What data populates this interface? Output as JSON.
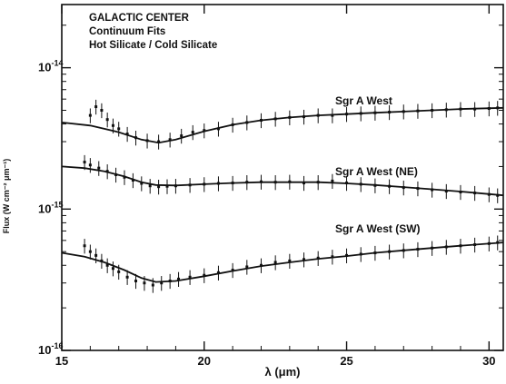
{
  "chart_data": {
    "type": "line",
    "title": "GALACTIC CENTER",
    "subtitle_lines": [
      "Continuum Fits",
      "Hot Silicate / Cold Silicate"
    ],
    "xlabel": "λ (μm)",
    "ylabel": "Flux (W cm⁻² μm⁻¹)",
    "xlim": [
      15,
      30.5
    ],
    "ylim": [
      1e-16,
      2.8e-14
    ],
    "yscale": "log",
    "x_ticks": [
      15,
      20,
      25,
      30
    ],
    "x_tick_labels": [
      "15",
      "20",
      "25",
      "30"
    ],
    "y_tick_mantissa": "10",
    "y_ticks": [
      {
        "value": 1e-16,
        "exponent": "-16"
      },
      {
        "value": 1e-15,
        "exponent": "-15"
      },
      {
        "value": 1e-14,
        "exponent": "-14"
      }
    ],
    "grid": false,
    "series": [
      {
        "name": "Sgr A West",
        "fit": {
          "x": [
            15,
            16,
            17,
            17.8,
            18.4,
            19,
            20,
            21,
            22,
            23,
            24,
            25,
            26,
            27,
            28,
            29,
            30.5
          ],
          "y": [
            4.1e-15,
            3.9e-15,
            3.5e-15,
            3.1e-15,
            2.95e-15,
            3.1e-15,
            3.55e-15,
            3.95e-15,
            4.25e-15,
            4.45e-15,
            4.6e-15,
            4.7e-15,
            4.8e-15,
            4.9e-15,
            5e-15,
            5.1e-15,
            5.2e-15
          ]
        },
        "points": {
          "x": [
            16.0,
            16.2,
            16.4,
            16.6,
            16.8,
            17.0,
            17.3,
            17.6,
            18.0,
            18.4,
            18.8,
            19.2,
            19.6,
            20.0,
            20.5,
            21.0,
            21.5,
            22.0,
            22.5,
            23.0,
            23.5,
            24.0,
            24.5,
            25.0,
            25.5,
            26.0,
            26.5,
            27.0,
            27.5,
            28.0,
            28.5,
            29.0,
            29.5,
            30.0,
            30.3
          ],
          "y": [
            4.6e-15,
            5.3e-15,
            5e-15,
            4.3e-15,
            3.9e-15,
            3.7e-15,
            3.4e-15,
            3.2e-15,
            3.05e-15,
            3e-15,
            3.1e-15,
            3.3e-15,
            3.5e-15,
            3.6e-15,
            3.7e-15,
            3.95e-15,
            4.1e-15,
            4.25e-15,
            4.35e-15,
            4.45e-15,
            4.5e-15,
            4.6e-15,
            4.6e-15,
            4.7e-15,
            4.75e-15,
            4.8e-15,
            4.85e-15,
            4.9e-15,
            4.95e-15,
            5e-15,
            5.05e-15,
            5.1e-15,
            5.1e-15,
            5.15e-15,
            5.2e-15
          ]
        }
      },
      {
        "name": "Sgr A West (NE)",
        "fit": {
          "x": [
            15,
            15.8,
            16.5,
            17.2,
            17.8,
            18.3,
            19,
            20,
            21,
            22,
            23,
            24,
            25,
            26,
            27,
            28,
            29,
            30.5
          ],
          "y": [
            2e-15,
            1.95e-15,
            1.85e-15,
            1.7e-15,
            1.55e-15,
            1.48e-15,
            1.47e-15,
            1.5e-15,
            1.53e-15,
            1.55e-15,
            1.55e-15,
            1.55e-15,
            1.52e-15,
            1.48e-15,
            1.43e-15,
            1.38e-15,
            1.33e-15,
            1.25e-15
          ]
        },
        "points": {
          "x": [
            15.8,
            16.0,
            16.3,
            16.6,
            16.9,
            17.2,
            17.5,
            17.8,
            18.1,
            18.4,
            18.7,
            19.0,
            19.5,
            20.0,
            20.5,
            21.0,
            21.5,
            22.0,
            22.5,
            23.0,
            23.5,
            24.0,
            24.5,
            25.0,
            25.5,
            26.0,
            26.5,
            27.0,
            27.5,
            28.0,
            28.5,
            29.0,
            29.5,
            30.0,
            30.3
          ],
          "y": [
            2.15e-15,
            2.05e-15,
            1.95e-15,
            1.85e-15,
            1.75e-15,
            1.68e-15,
            1.6e-15,
            1.52e-15,
            1.46e-15,
            1.44e-15,
            1.45e-15,
            1.46e-15,
            1.48e-15,
            1.5e-15,
            1.52e-15,
            1.53e-15,
            1.55e-15,
            1.56e-15,
            1.55e-15,
            1.56e-15,
            1.53e-15,
            1.55e-15,
            1.58e-15,
            1.53e-15,
            1.5e-15,
            1.47e-15,
            1.45e-15,
            1.42e-15,
            1.4e-15,
            1.37e-15,
            1.34e-15,
            1.32e-15,
            1.3e-15,
            1.27e-15,
            1.25e-15
          ]
        }
      },
      {
        "name": "Sgr A West (SW)",
        "fit": {
          "x": [
            15,
            15.8,
            16.5,
            17.2,
            17.8,
            18.3,
            19,
            20,
            21,
            22,
            23,
            24,
            25,
            26,
            27,
            28,
            29,
            30.5
          ],
          "y": [
            4.9e-16,
            4.6e-16,
            4.2e-16,
            3.7e-16,
            3.25e-16,
            3.05e-16,
            3.1e-16,
            3.35e-16,
            3.65e-16,
            3.95e-16,
            4.2e-16,
            4.45e-16,
            4.65e-16,
            4.9e-16,
            5.1e-16,
            5.3e-16,
            5.5e-16,
            5.8e-16
          ]
        },
        "points": {
          "x": [
            15.8,
            16.0,
            16.2,
            16.4,
            16.6,
            16.8,
            17.0,
            17.3,
            17.6,
            17.9,
            18.2,
            18.5,
            18.8,
            19.1,
            19.5,
            20.0,
            20.5,
            21.0,
            21.5,
            22.0,
            22.5,
            23.0,
            23.5,
            24.0,
            24.5,
            25.0,
            25.5,
            26.0,
            26.5,
            27.0,
            27.5,
            28.0,
            28.5,
            29.0,
            29.5,
            30.0,
            30.3
          ],
          "y": [
            5.5e-16,
            5e-16,
            4.7e-16,
            4.3e-16,
            4e-16,
            3.8e-16,
            3.6e-16,
            3.3e-16,
            3.1e-16,
            3e-16,
            2.9e-16,
            3e-16,
            3.1e-16,
            3.2e-16,
            3.3e-16,
            3.4e-16,
            3.55e-16,
            3.7e-16,
            3.9e-16,
            4e-16,
            4.2e-16,
            4.3e-16,
            4.4e-16,
            4.5e-16,
            4.6e-16,
            4.7e-16,
            4.8e-16,
            4.9e-16,
            5e-16,
            5.1e-16,
            5.2e-16,
            5.3e-16,
            5.4e-16,
            5.5e-16,
            5.6e-16,
            5.7e-16,
            5.8e-16
          ]
        }
      }
    ]
  }
}
